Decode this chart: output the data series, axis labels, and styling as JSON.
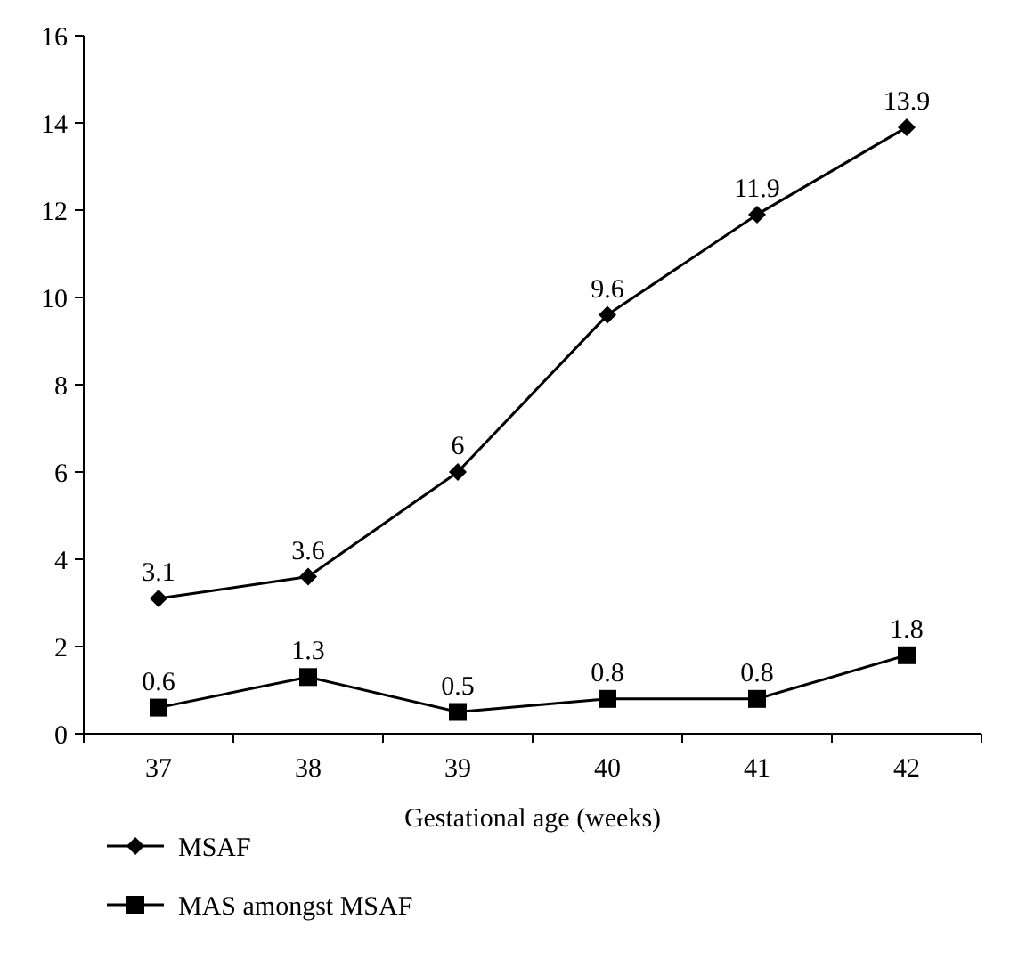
{
  "chart_data": {
    "type": "line",
    "xlabel": "Gestational age (weeks)",
    "categories": [
      "37",
      "38",
      "39",
      "40",
      "41",
      "42"
    ],
    "series": [
      {
        "name": "MSAF",
        "color": "#000000",
        "marker": "diamond",
        "values": [
          3.1,
          3.6,
          6,
          9.6,
          11.9,
          13.9
        ]
      },
      {
        "name": "MAS amongst MSAF",
        "color": "#000000",
        "marker": "square",
        "values": [
          0.6,
          1.3,
          0.5,
          0.8,
          0.8,
          1.8
        ]
      }
    ],
    "ylim": [
      0,
      16
    ],
    "yticks": [
      0,
      2,
      4,
      6,
      8,
      10,
      12,
      14,
      16
    ],
    "data_labels": true,
    "grid": false,
    "legend": "bottom left",
    "line_style": "solid"
  }
}
